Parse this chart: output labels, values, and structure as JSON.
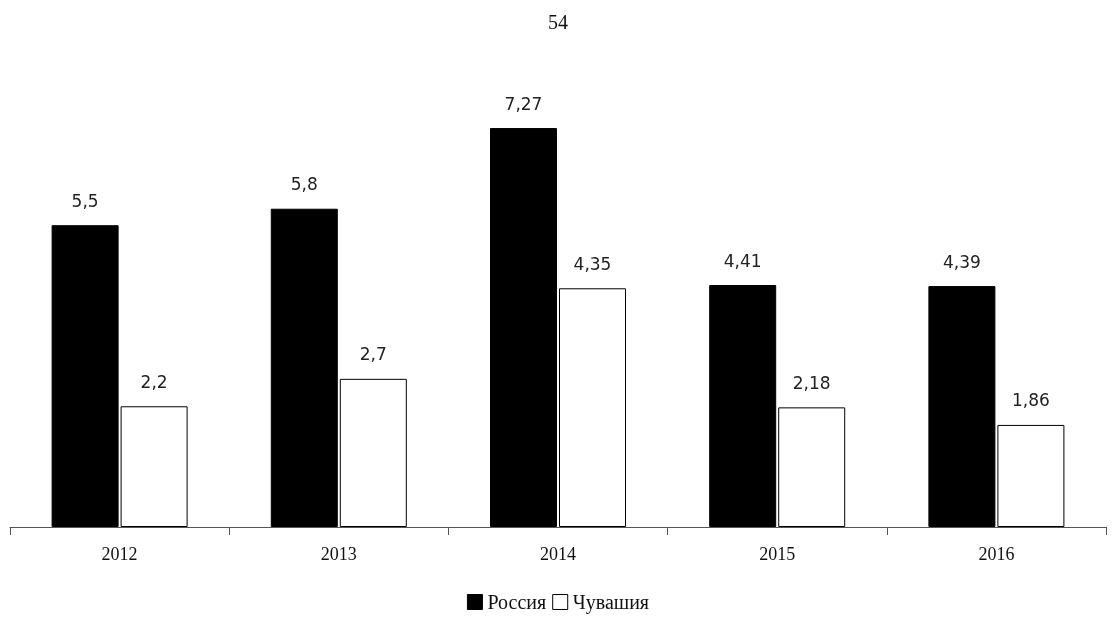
{
  "chart_data": {
    "type": "bar",
    "annotations": [
      "54"
    ],
    "categories": [
      "2012",
      "2013",
      "2014",
      "2015",
      "2016"
    ],
    "series": [
      {
        "name": "Россия",
        "color": "#000000",
        "values": [
          5.5,
          5.8,
          7.27,
          4.41,
          4.39
        ],
        "value_labels": [
          "5,5",
          "5,8",
          "7,27",
          "4,41",
          "4,39"
        ]
      },
      {
        "name": "Чувашия",
        "color": "#ffffff",
        "values": [
          2.2,
          2.7,
          4.35,
          2.18,
          1.86
        ],
        "value_labels": [
          "2,2",
          "2,7",
          "4,35",
          "2,18",
          "1,86"
        ]
      }
    ],
    "legend": "bottom"
  }
}
